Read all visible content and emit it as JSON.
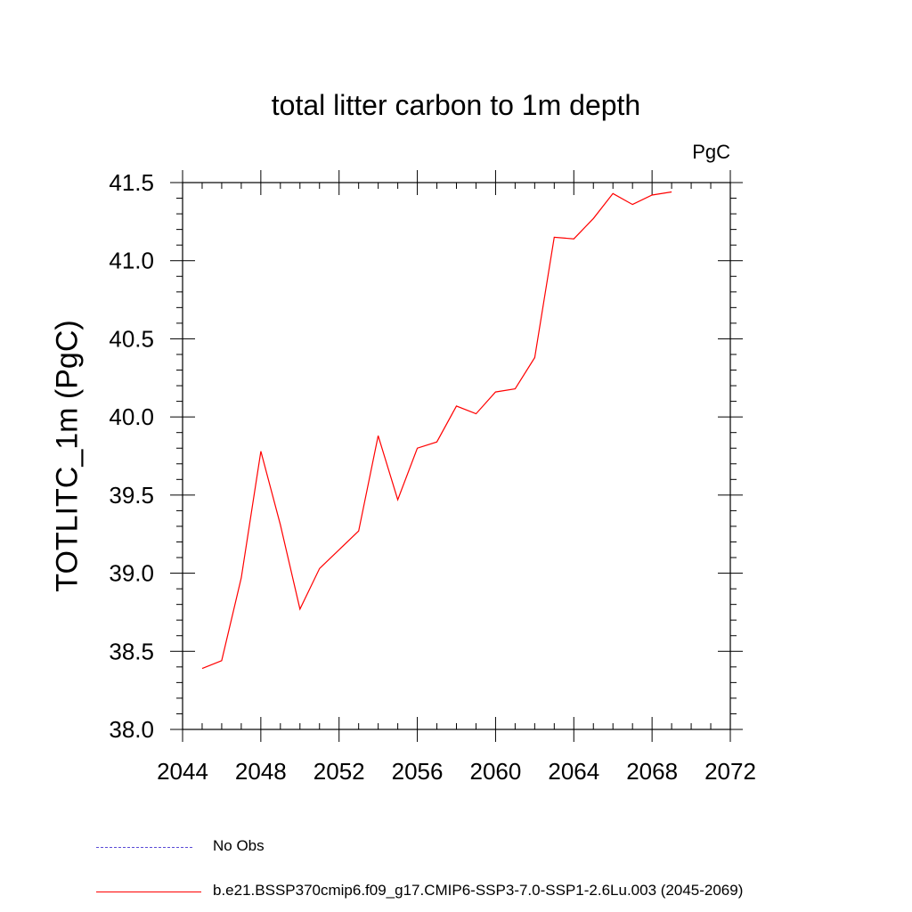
{
  "chart_data": {
    "type": "line",
    "title": "total litter carbon to 1m depth",
    "units_label": "PgC",
    "ylabel": "TOTLITC_1m  (PgC)",
    "xlabel": "",
    "xlim": [
      2044,
      2072
    ],
    "ylim": [
      38.0,
      41.5
    ],
    "x_ticks": [
      2044,
      2048,
      2052,
      2056,
      2060,
      2064,
      2068,
      2072
    ],
    "x_tick_labels": [
      "2044",
      "2048",
      "2052",
      "2056",
      "2060",
      "2064",
      "2068",
      "2072"
    ],
    "y_ticks": [
      38.0,
      38.5,
      39.0,
      39.5,
      40.0,
      40.5,
      41.0,
      41.5
    ],
    "y_tick_labels": [
      "38.0",
      "38.5",
      "39.0",
      "39.5",
      "40.0",
      "40.5",
      "41.0",
      "41.5"
    ],
    "grid": false,
    "legend_placement": "bottom",
    "series": [
      {
        "name": "No Obs",
        "color": "#5b4bd6",
        "style": "dashed",
        "x": [],
        "y": []
      },
      {
        "name": "b.e21.BSSP370cmip6.f09_g17.CMIP6-SSP3-7.0-SSP1-2.6Lu.003 (2045-2069)",
        "color": "#ff0000",
        "style": "solid",
        "x": [
          2045,
          2046,
          2047,
          2048,
          2049,
          2050,
          2051,
          2052,
          2053,
          2054,
          2055,
          2056,
          2057,
          2058,
          2059,
          2060,
          2061,
          2062,
          2063,
          2064,
          2065,
          2066,
          2067,
          2068,
          2069
        ],
        "y": [
          38.39,
          38.44,
          38.97,
          39.78,
          39.31,
          38.77,
          39.03,
          39.15,
          39.27,
          39.88,
          39.47,
          39.8,
          39.84,
          40.07,
          40.02,
          40.16,
          40.18,
          40.38,
          41.15,
          41.14,
          41.27,
          41.43,
          41.36,
          41.42,
          41.44
        ]
      }
    ]
  }
}
